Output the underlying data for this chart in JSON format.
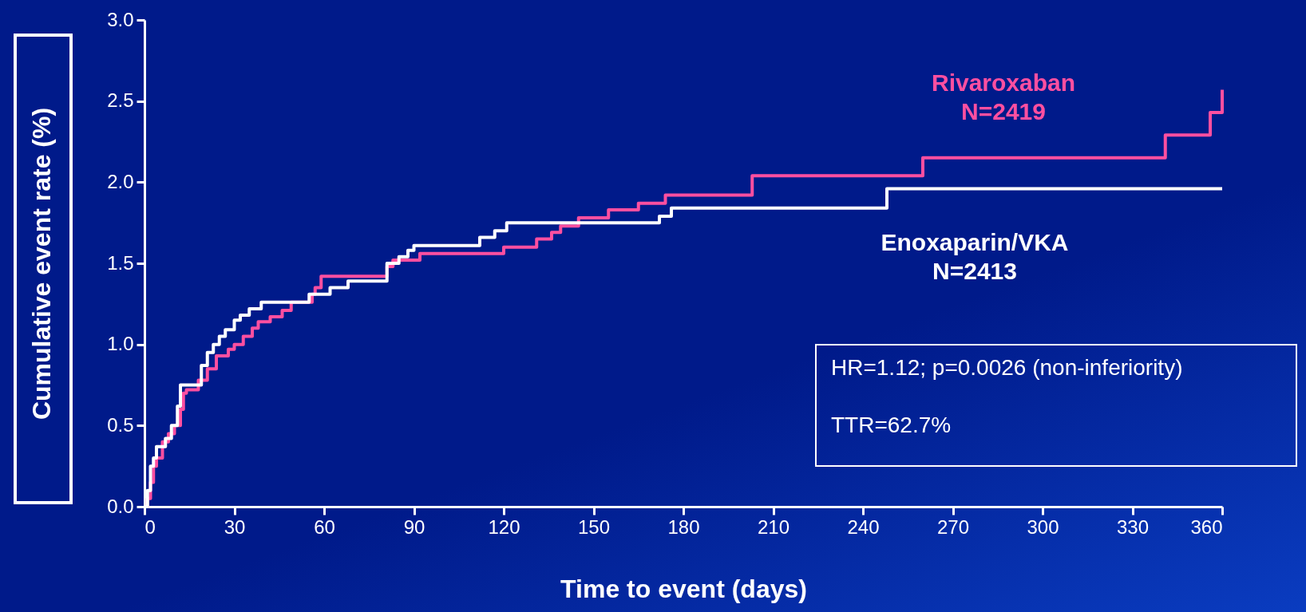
{
  "chart_data": {
    "type": "step",
    "xlabel": "Time to event (days)",
    "ylabel": "Cumulative event rate (%)",
    "xlim": [
      0,
      360
    ],
    "ylim": [
      0,
      3.0
    ],
    "xticks": [
      0,
      30,
      60,
      90,
      120,
      150,
      180,
      210,
      240,
      270,
      300,
      330,
      360
    ],
    "yticks": [
      {
        "value": 0,
        "label": "0.0"
      },
      {
        "value": 0.5,
        "label": "0.5"
      },
      {
        "value": 1,
        "label": "1.0"
      },
      {
        "value": 1.5,
        "label": "1.5"
      },
      {
        "value": 2,
        "label": "2.0"
      },
      {
        "value": 2.5,
        "label": "2.5"
      },
      {
        "value": 3,
        "label": "3.0"
      }
    ],
    "grid": false,
    "line_style": "solid",
    "marker": "none",
    "annotations": [
      "HR=1.12; p=0.0026 (non-inferiority)",
      "TTR=62.7%"
    ],
    "series": [
      {
        "name": "Rivaroxaban\nN=2419",
        "color": "#ff4fa0",
        "x": [
          0,
          1,
          2,
          3,
          4,
          6,
          8,
          10,
          12,
          13,
          14,
          18,
          21,
          24,
          28,
          30,
          33,
          36,
          38,
          42,
          46,
          49,
          56,
          57,
          59,
          81,
          83,
          92,
          120,
          131,
          136,
          139,
          145,
          155,
          165,
          174,
          203,
          260,
          341,
          356,
          360
        ],
        "values": [
          0,
          0.05,
          0.15,
          0.25,
          0.3,
          0.4,
          0.45,
          0.5,
          0.6,
          0.7,
          0.72,
          0.78,
          0.85,
          0.93,
          0.97,
          1.0,
          1.05,
          1.1,
          1.14,
          1.17,
          1.21,
          1.26,
          1.31,
          1.35,
          1.42,
          1.48,
          1.52,
          1.56,
          1.6,
          1.65,
          1.69,
          1.73,
          1.78,
          1.83,
          1.87,
          1.92,
          2.04,
          2.15,
          2.29,
          2.43,
          2.57
        ]
      },
      {
        "name": "Enoxaparin/VKA\nN=2413",
        "color": "#ffffff",
        "x": [
          0,
          1,
          2,
          3,
          4,
          7,
          9,
          11,
          12,
          19,
          21,
          23,
          25,
          27,
          30,
          32,
          35,
          39,
          55,
          62,
          68,
          81,
          85,
          88,
          90,
          112,
          117,
          121,
          172,
          176,
          248,
          360
        ],
        "values": [
          0,
          0.1,
          0.25,
          0.3,
          0.37,
          0.42,
          0.5,
          0.62,
          0.75,
          0.87,
          0.95,
          1.0,
          1.05,
          1.09,
          1.15,
          1.18,
          1.22,
          1.26,
          1.31,
          1.35,
          1.39,
          1.5,
          1.54,
          1.58,
          1.61,
          1.66,
          1.7,
          1.75,
          1.79,
          1.84,
          1.96,
          1.96
        ]
      }
    ]
  }
}
